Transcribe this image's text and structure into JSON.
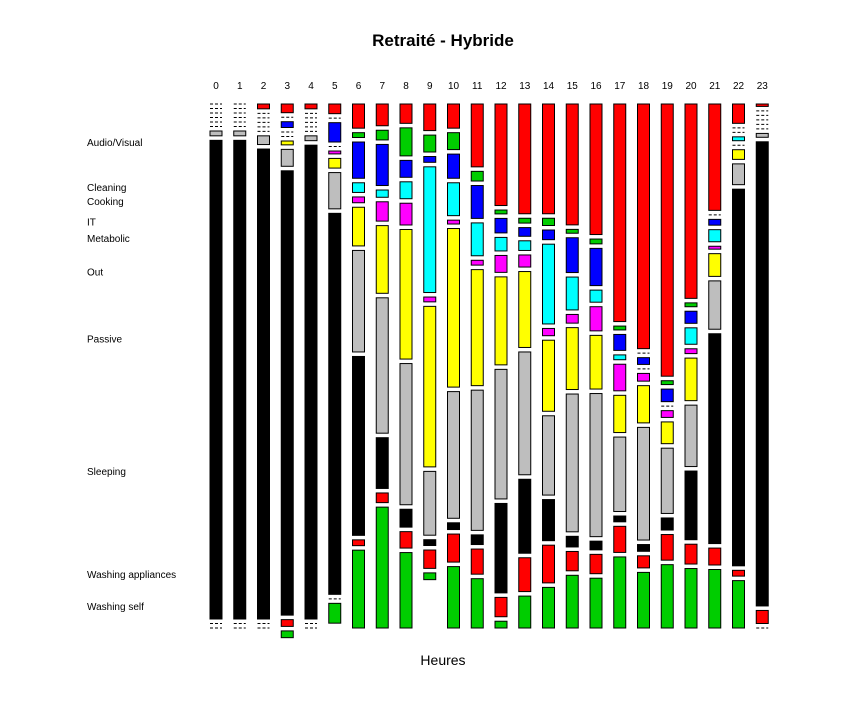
{
  "chart_data": {
    "type": "mosaic",
    "title": "Retraité - Hybride",
    "xlabel": "Heures",
    "hours": [
      "0",
      "1",
      "2",
      "3",
      "4",
      "5",
      "6",
      "7",
      "8",
      "9",
      "10",
      "11",
      "12",
      "13",
      "14",
      "15",
      "16",
      "17",
      "18",
      "19",
      "20",
      "21",
      "22",
      "23"
    ],
    "categories": [
      "Audio/Visual",
      "Cleaning",
      "Cooking",
      "IT",
      "Metabolic",
      "Out",
      "Passive",
      "Sleeping",
      "Washing appliances",
      "Washing self"
    ],
    "category_colors": {
      "Audio/Visual": "#ff0000",
      "Cleaning": "#00cd00",
      "Cooking": "#0000ff",
      "IT": "#00ffff",
      "Metabolic": "#ff00ff",
      "Out": "#ffff00",
      "Passive": "#bebebe",
      "Sleeping": "#000000",
      "Washing appliances": "#ff0000",
      "Washing self": "#00cd00"
    },
    "proportions": [
      [
        0,
        0,
        0,
        0,
        0,
        0,
        0.01,
        0.99,
        0,
        0
      ],
      [
        0,
        0,
        0,
        0,
        0,
        0,
        0.01,
        0.99,
        0,
        0
      ],
      [
        0.01,
        0,
        0,
        0,
        0,
        0,
        0.018,
        0.972,
        0,
        0
      ],
      [
        0.018,
        0,
        0.012,
        0,
        0,
        0.008,
        0.035,
        0.919,
        0.014,
        0.014
      ],
      [
        0.01,
        0,
        0,
        0,
        0,
        0,
        0.01,
        0.98,
        0,
        0
      ],
      [
        0.02,
        0,
        0.04,
        0,
        0.006,
        0.02,
        0.075,
        0.788,
        0,
        0.041
      ],
      [
        0.05,
        0.01,
        0.075,
        0.02,
        0.012,
        0.08,
        0.21,
        0.37,
        0.012,
        0.161
      ],
      [
        0.045,
        0.02,
        0.085,
        0.015,
        0.04,
        0.14,
        0.28,
        0.105,
        0.02,
        0.25
      ],
      [
        0.04,
        0.058,
        0.035,
        0.035,
        0.045,
        0.268,
        0.292,
        0.037,
        0.034,
        0.156
      ],
      [
        0.055,
        0.035,
        0.012,
        0.26,
        0.01,
        0.332,
        0.132,
        0.012,
        0.038,
        0.014
      ],
      [
        0.05,
        0.035,
        0.05,
        0.068,
        0.008,
        0.328,
        0.262,
        0.014,
        0.058,
        0.127
      ],
      [
        0.13,
        0.02,
        0.068,
        0.068,
        0.01,
        0.24,
        0.29,
        0.02,
        0.052,
        0.102
      ],
      [
        0.21,
        0.008,
        0.03,
        0.028,
        0.035,
        0.182,
        0.268,
        0.185,
        0.04,
        0.014
      ],
      [
        0.227,
        0.01,
        0.018,
        0.02,
        0.025,
        0.157,
        0.254,
        0.153,
        0.07,
        0.066
      ],
      [
        0.227,
        0.015,
        0.02,
        0.165,
        0.015,
        0.147,
        0.164,
        0.085,
        0.078,
        0.084
      ],
      [
        0.25,
        0.008,
        0.072,
        0.068,
        0.018,
        0.128,
        0.285,
        0.022,
        0.04,
        0.109
      ],
      [
        0.27,
        0.01,
        0.077,
        0.025,
        0.05,
        0.111,
        0.296,
        0.018,
        0.04,
        0.103
      ],
      [
        0.45,
        0.008,
        0.033,
        0.01,
        0.055,
        0.077,
        0.154,
        0.012,
        0.054,
        0.147
      ],
      [
        0.506,
        0,
        0.014,
        0,
        0.016,
        0.077,
        0.233,
        0.014,
        0.025,
        0.115
      ],
      [
        0.563,
        0.008,
        0.026,
        0,
        0.014,
        0.045,
        0.135,
        0.025,
        0.053,
        0.131
      ],
      [
        0.402,
        0.008,
        0.025,
        0.034,
        0.01,
        0.088,
        0.127,
        0.142,
        0.041,
        0.123
      ],
      [
        0.22,
        0,
        0.012,
        0.025,
        0.006,
        0.047,
        0.1,
        0.434,
        0.035,
        0.121
      ],
      [
        0.04,
        0,
        0,
        0.008,
        0,
        0.02,
        0.043,
        0.779,
        0.012,
        0.098
      ],
      [
        0.005,
        0,
        0,
        0,
        0,
        0,
        0.008,
        0.96,
        0.027,
        0
      ]
    ]
  }
}
